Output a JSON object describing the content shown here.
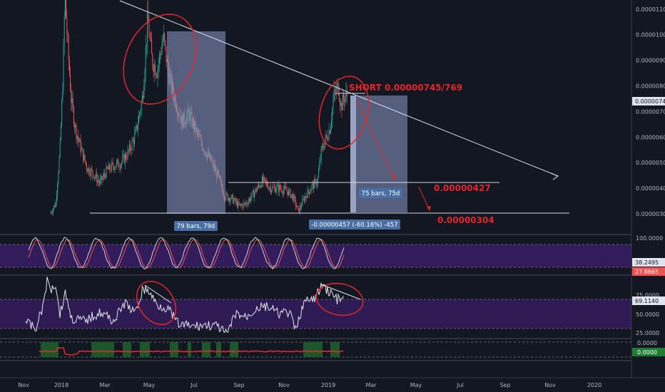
{
  "chart_data": {
    "type": "candlestick",
    "price_axis": {
      "ticks": [
        "0.00001100",
        "0.00001000",
        "0.00000900",
        "0.00000800",
        "0.00000700",
        "0.00000600",
        "0.00000500",
        "0.00000400",
        "0.00000300"
      ],
      "current_price": "0.00000743"
    },
    "time_axis": {
      "ticks": [
        "Nov",
        "2018",
        "Mar",
        "May",
        "Jul",
        "Sep",
        "Nov",
        "2019",
        "Mar",
        "May",
        "Jul",
        "Sep",
        "Nov",
        "2020"
      ]
    },
    "annotations": {
      "short_label": "SHORT 0.00000745/769",
      "target1": "0.00000427",
      "target2": "0.00000304",
      "range_box1": "79 bars, 79d",
      "range_box2": "75 bars, 75d",
      "measure": "-0.00000457 (-60.16%) -457"
    },
    "stoch_rsi": {
      "ticks": [
        "100.0000"
      ],
      "badge_k": "38.2495",
      "badge_d": "27.8665"
    },
    "rsi": {
      "ticks": [
        "75.0000",
        "50.0000",
        "25.0000"
      ],
      "badge": "69.1140"
    },
    "macd": {
      "ticks": [
        "0.0000"
      ],
      "badge": "0.0000"
    },
    "colors": {
      "background": "#131722",
      "candle_up": "#26a69a",
      "candle_down": "#ef5350",
      "annotation_red": "#e4262a",
      "range_box": "#8c9bc8",
      "oscillator_band": "#3a1d66"
    }
  }
}
